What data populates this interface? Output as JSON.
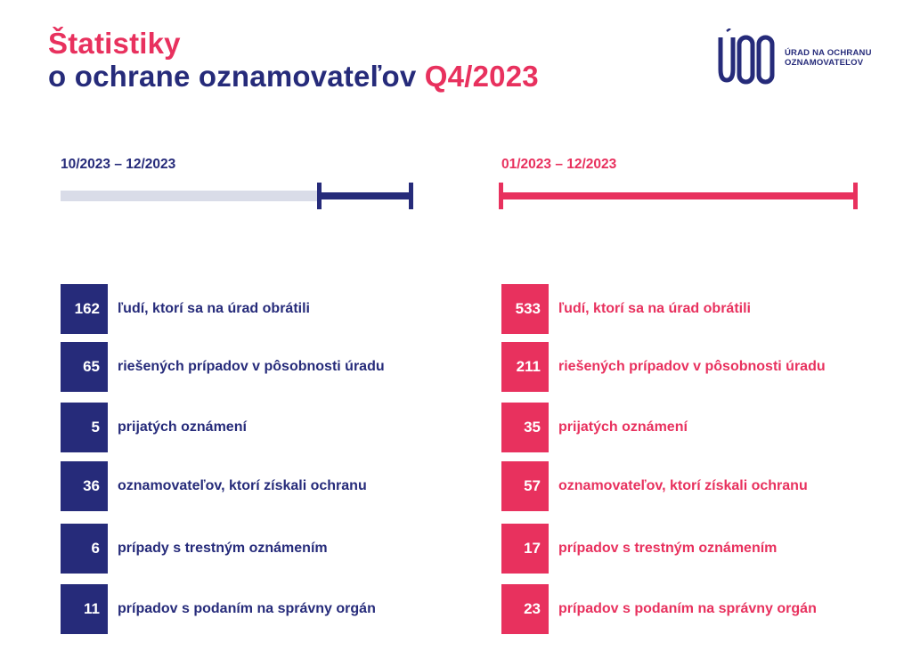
{
  "header": {
    "title_line1": "Štatistiky",
    "title_line2": "o ochrane oznamovateľov",
    "title_accent": "Q4/2023"
  },
  "logo": {
    "mark_text": "ÚOO",
    "name_line1": "ÚRAD NA OCHRANU",
    "name_line2": "OZNAMOVATEĽOV"
  },
  "colors": {
    "navy": "#262b7a",
    "pink": "#e8315e",
    "light_track": "#d9dce8"
  },
  "left": {
    "period": "10/2023 – 12/2023",
    "stats": [
      {
        "value": "162",
        "label": "ľudí, ktorí sa na úrad obrátili"
      },
      {
        "value": "65",
        "label": "riešených prípadov v pôsobnosti úradu"
      },
      {
        "value": "5",
        "label": "prijatých oznámení"
      },
      {
        "value": "36",
        "label": "oznamovateľov, ktorí získali ochranu"
      },
      {
        "value": "6",
        "label": "prípady s trestným oznámením"
      },
      {
        "value": "11",
        "label": "prípadov s podaním na správny orgán"
      }
    ]
  },
  "right": {
    "period": "01/2023 – 12/2023",
    "stats": [
      {
        "value": "533",
        "label": "ľudí, ktorí sa na úrad obrátili"
      },
      {
        "value": "211",
        "label": "riešených prípadov v pôsobnosti úradu"
      },
      {
        "value": "35",
        "label": "prijatých oznámení"
      },
      {
        "value": "57",
        "label": "oznamovateľov, ktorí získali ochranu"
      },
      {
        "value": "17",
        "label": "prípadov s trestným oznámením"
      },
      {
        "value": "23",
        "label": "prípadov s podaním na správny orgán"
      }
    ]
  }
}
